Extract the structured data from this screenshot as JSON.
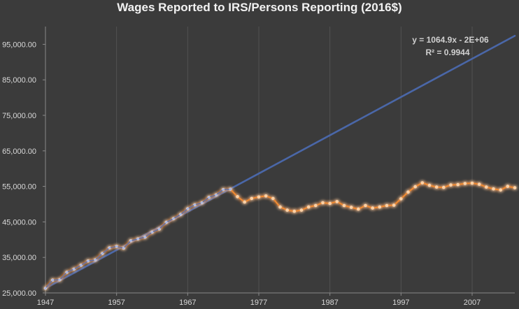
{
  "chart_data": {
    "type": "line",
    "title": "Wages Reported to IRS/Persons Reporting (2016$)",
    "xlabel": "",
    "ylabel": "",
    "x_ticks": [
      "1947",
      "1957",
      "1967",
      "1977",
      "1987",
      "1997",
      "2007"
    ],
    "y_ticks": [
      "25,000.00",
      "35,000.00",
      "45,000.00",
      "55,000.00",
      "65,000.00",
      "75,000.00",
      "85,000.00",
      "95,000.00"
    ],
    "xlim": [
      1947,
      2013
    ],
    "ylim": [
      25000,
      100000
    ],
    "grid": "vertical",
    "series": [
      {
        "color": "#f08a30",
        "glow": true,
        "x": [
          1947,
          1948,
          1949,
          1950,
          1951,
          1952,
          1953,
          1954,
          1955,
          1956,
          1957,
          1958,
          1959,
          1960,
          1961,
          1962,
          1963,
          1964,
          1965,
          1966,
          1967,
          1968,
          1969,
          1970,
          1971,
          1972,
          1973,
          1974,
          1975,
          1976,
          1977,
          1978,
          1979,
          1980,
          1981,
          1982,
          1983,
          1984,
          1985,
          1986,
          1987,
          1988,
          1989,
          1990,
          1991,
          1992,
          1993,
          1994,
          1995,
          1996,
          1997,
          1998,
          1999,
          2000,
          2001,
          2002,
          2003,
          2004,
          2005,
          2006,
          2007,
          2008,
          2009,
          2010,
          2011,
          2012,
          2013
        ],
        "values": [
          26300,
          28600,
          28700,
          30800,
          31700,
          32800,
          34000,
          34300,
          36100,
          37700,
          38100,
          37600,
          39700,
          40200,
          40700,
          42100,
          43000,
          44900,
          45900,
          47100,
          48700,
          49800,
          50400,
          51900,
          52600,
          54100,
          54200,
          52100,
          50600,
          51600,
          52000,
          52300,
          51600,
          49200,
          48300,
          48000,
          48300,
          49200,
          49600,
          50400,
          50200,
          50700,
          49600,
          49100,
          48600,
          49600,
          48900,
          49200,
          49600,
          49700,
          51500,
          53400,
          54900,
          56000,
          55300,
          54800,
          54700,
          55400,
          55500,
          55800,
          55900,
          55600,
          54800,
          54300,
          54000,
          55000,
          54600
        ]
      },
      {
        "color": "#5b6fa8",
        "x": [
          1947,
          1948,
          1949,
          1950,
          1951,
          1952,
          1953,
          1954,
          1955,
          1956,
          1957,
          1958,
          1959,
          1960,
          1961,
          1962,
          1963,
          1964,
          1965,
          1966,
          1967,
          1968,
          1969,
          1970,
          1971,
          1972,
          1973
        ],
        "values": [
          26300,
          28600,
          28700,
          30800,
          31700,
          32800,
          34000,
          34300,
          36100,
          37700,
          38100,
          37600,
          39700,
          40200,
          40700,
          42100,
          43000,
          44900,
          45900,
          47100,
          48700,
          49800,
          50400,
          51900,
          52600,
          54100,
          54200
        ]
      }
    ],
    "trendline": {
      "color": "#4a67a8",
      "x": [
        1947,
        2013
      ],
      "values": [
        26300,
        97400
      ],
      "equation": "y = 1064.9x - 2E+06",
      "r2": "R² = 0.9944"
    }
  }
}
